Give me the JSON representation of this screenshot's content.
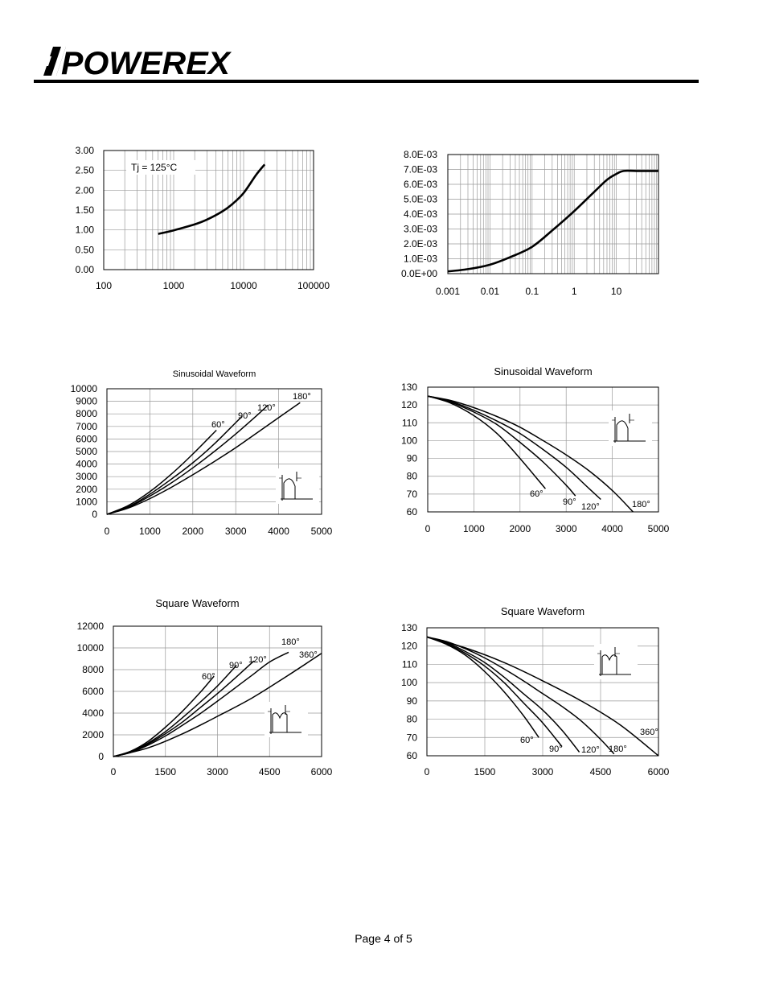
{
  "header": {
    "brand": "POWEREX"
  },
  "footer": {
    "page_label": "Page 4 of 5"
  },
  "chart_data": [
    {
      "type": "line",
      "title": "",
      "xscale": "log",
      "xlim": [
        100,
        100000
      ],
      "ylim": [
        0,
        3
      ],
      "xticks": [
        "100",
        "1000",
        "10000",
        "100000"
      ],
      "yticks": [
        "0.00",
        "0.50",
        "1.00",
        "1.50",
        "2.00",
        "2.50",
        "3.00"
      ],
      "annotations": [
        "Tj = 125°C"
      ],
      "series": [
        {
          "x": [
            600,
            1000,
            2000,
            3000,
            5000,
            7000,
            10000,
            15000,
            20000
          ],
          "y": [
            0.9,
            0.99,
            1.14,
            1.26,
            1.47,
            1.66,
            1.93,
            2.38,
            2.65
          ]
        }
      ]
    },
    {
      "type": "line",
      "title": "",
      "xscale": "log",
      "xlim": [
        0.001,
        100
      ],
      "ylim": [
        0,
        0.008
      ],
      "xticks": [
        "0.001",
        "0.01",
        "0.1",
        "1",
        "10"
      ],
      "yticks": [
        "0.0E+00",
        "1.0E-03",
        "2.0E-03",
        "3.0E-03",
        "4.0E-03",
        "5.0E-03",
        "6.0E-03",
        "7.0E-03",
        "8.0E-03"
      ],
      "series": [
        {
          "x": [
            0.001,
            0.003,
            0.01,
            0.03,
            0.1,
            0.3,
            1,
            3,
            6,
            10,
            15,
            30,
            100
          ],
          "y": [
            0.00015,
            0.0003,
            0.0006,
            0.0011,
            0.0018,
            0.0029,
            0.0042,
            0.0055,
            0.0063,
            0.0067,
            0.0069,
            0.0069,
            0.0069
          ]
        }
      ]
    },
    {
      "type": "line",
      "title": "Sinusoidal Waveform",
      "xlim": [
        0,
        5000
      ],
      "ylim": [
        0,
        10000
      ],
      "xticks": [
        "0",
        "1000",
        "2000",
        "3000",
        "4000",
        "5000"
      ],
      "yticks": [
        "0",
        "1000",
        "2000",
        "3000",
        "4000",
        "5000",
        "6000",
        "7000",
        "8000",
        "9000",
        "10000"
      ],
      "series": [
        {
          "name": "60°",
          "x": [
            0,
            500,
            1000,
            1500,
            2000,
            2550
          ],
          "y": [
            0,
            700,
            1800,
            3200,
            4800,
            6700
          ]
        },
        {
          "name": "90°",
          "x": [
            0,
            500,
            1000,
            1500,
            2000,
            2500,
            3000,
            3150
          ],
          "y": [
            0,
            600,
            1600,
            2800,
            4100,
            5600,
            7300,
            7800
          ]
        },
        {
          "name": "120°",
          "x": [
            0,
            500,
            1000,
            1500,
            2000,
            2500,
            3000,
            3500,
            3750
          ],
          "y": [
            0,
            550,
            1450,
            2500,
            3700,
            5000,
            6400,
            7900,
            8700
          ]
        },
        {
          "name": "180°",
          "x": [
            0,
            500,
            1000,
            1500,
            2000,
            2500,
            3000,
            3500,
            4000,
            4500
          ],
          "y": [
            0,
            500,
            1250,
            2150,
            3150,
            4200,
            5300,
            6500,
            7700,
            8900
          ]
        }
      ]
    },
    {
      "type": "line",
      "title": "Sinusoidal Waveform",
      "xlim": [
        0,
        5000
      ],
      "ylim": [
        60,
        130
      ],
      "xticks": [
        "0",
        "1000",
        "2000",
        "3000",
        "4000",
        "5000"
      ],
      "yticks": [
        "60",
        "70",
        "80",
        "90",
        "100",
        "110",
        "120",
        "130"
      ],
      "series": [
        {
          "name": "60°",
          "x": [
            0,
            500,
            1000,
            1500,
            2000,
            2550
          ],
          "y": [
            125,
            121,
            114,
            104,
            90,
            73
          ]
        },
        {
          "name": "90°",
          "x": [
            0,
            500,
            1000,
            1500,
            2000,
            2500,
            3000,
            3200
          ],
          "y": [
            125,
            121.5,
            116,
            109,
            99,
            88,
            75,
            69
          ]
        },
        {
          "name": "120°",
          "x": [
            0,
            500,
            1000,
            1500,
            2000,
            2500,
            3000,
            3500,
            3750
          ],
          "y": [
            125,
            122,
            117,
            111,
            104,
            95,
            85,
            73,
            67
          ]
        },
        {
          "name": "180°",
          "x": [
            0,
            500,
            1000,
            1500,
            2000,
            2500,
            3000,
            3500,
            4000,
            4450
          ],
          "y": [
            125,
            122.5,
            118.5,
            113.5,
            107.5,
            100,
            92,
            83,
            72,
            60
          ]
        }
      ]
    },
    {
      "type": "line",
      "title": "Square Waveform",
      "xlim": [
        0,
        6000
      ],
      "ylim": [
        0,
        12000
      ],
      "xticks": [
        "0",
        "1500",
        "3000",
        "4500",
        "6000"
      ],
      "yticks": [
        "0",
        "2000",
        "4000",
        "6000",
        "8000",
        "10000",
        "12000"
      ],
      "series": [
        {
          "name": "60°",
          "x": [
            0,
            500,
            1000,
            1500,
            2000,
            2500,
            2900
          ],
          "y": [
            0,
            500,
            1400,
            2700,
            4200,
            5900,
            7400
          ]
        },
        {
          "name": "90°",
          "x": [
            0,
            500,
            1000,
            1500,
            2000,
            2500,
            3000,
            3550
          ],
          "y": [
            0,
            450,
            1250,
            2300,
            3600,
            5000,
            6500,
            8400
          ]
        },
        {
          "name": "120°",
          "x": [
            0,
            500,
            1000,
            1500,
            2000,
            2500,
            3000,
            3500,
            4050
          ],
          "y": [
            0,
            400,
            1150,
            2100,
            3200,
            4500,
            5800,
            7200,
            8800
          ]
        },
        {
          "name": "180°",
          "x": [
            0,
            500,
            1000,
            1500,
            2000,
            2500,
            3000,
            3500,
            4000,
            4500,
            5050
          ],
          "y": [
            0,
            380,
            1050,
            1900,
            2900,
            3950,
            5100,
            6300,
            7500,
            8700,
            9600
          ]
        },
        {
          "name": "360°",
          "x": [
            0,
            1000,
            2000,
            3000,
            4000,
            5000,
            6000
          ],
          "y": [
            0,
            800,
            2100,
            3700,
            5400,
            7400,
            9500
          ]
        }
      ]
    },
    {
      "type": "line",
      "title": "Square Waveform",
      "xlim": [
        0,
        6000
      ],
      "ylim": [
        60,
        130
      ],
      "xticks": [
        "0",
        "1500",
        "3000",
        "4500",
        "6000"
      ],
      "yticks": [
        "60",
        "70",
        "80",
        "90",
        "100",
        "110",
        "120",
        "130"
      ],
      "series": [
        {
          "name": "60°",
          "x": [
            0,
            500,
            1000,
            1500,
            2000,
            2500,
            2900
          ],
          "y": [
            125,
            121,
            115,
            106,
            95,
            82,
            70
          ]
        },
        {
          "name": "90°",
          "x": [
            0,
            500,
            1000,
            1500,
            2000,
            2500,
            3000,
            3500
          ],
          "y": [
            125,
            121.5,
            116,
            109,
            100,
            89,
            78,
            65
          ]
        },
        {
          "name": "120°",
          "x": [
            0,
            500,
            1000,
            1500,
            2000,
            2500,
            3000,
            3500,
            3950
          ],
          "y": [
            125,
            122,
            117,
            111,
            103,
            94,
            85,
            74,
            62
          ]
        },
        {
          "name": "180°",
          "x": [
            0,
            500,
            1000,
            1500,
            2000,
            2500,
            3000,
            3500,
            4000,
            4500,
            4850
          ],
          "y": [
            125,
            122.5,
            118.5,
            113.5,
            107.5,
            101,
            94,
            87,
            79,
            69,
            61
          ]
        },
        {
          "name": "360°",
          "x": [
            0,
            1000,
            2000,
            3000,
            4000,
            5000,
            6000
          ],
          "y": [
            125,
            119,
            111,
            101,
            90,
            77,
            60
          ]
        }
      ]
    }
  ]
}
